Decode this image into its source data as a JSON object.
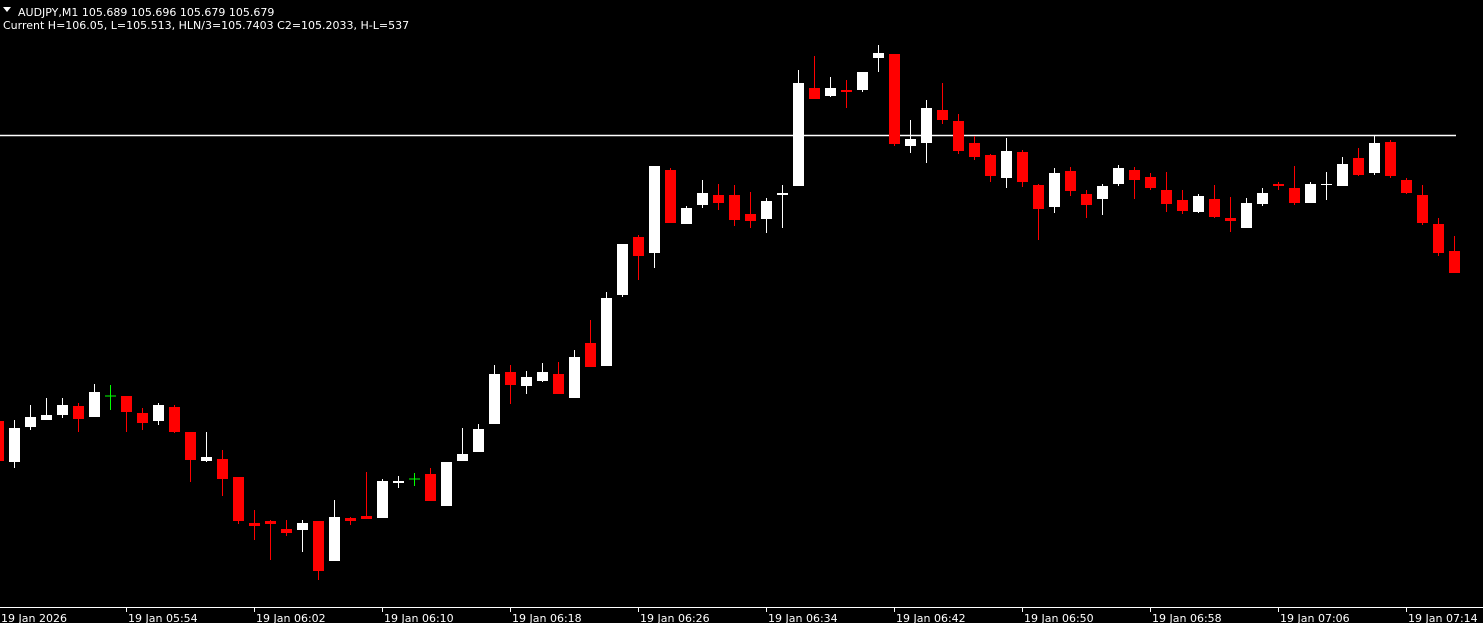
{
  "chart_data": {
    "type": "candlestick",
    "title": "AUDJPY,M1  105.689 105.696 105.679 105.679",
    "subtitle": "Current H=106.05, L=105.513, HLN/3=105.7403 C2=105.2033, H-L=537",
    "categories": [
      "19 Jan 2026",
      null,
      null,
      null,
      null,
      null,
      null,
      null,
      "19 Jan 05:54",
      null,
      null,
      null,
      null,
      null,
      null,
      null,
      "19 Jan 06:02",
      null,
      null,
      null,
      null,
      null,
      null,
      null,
      "19 Jan 06:10",
      null,
      null,
      null,
      null,
      null,
      null,
      null,
      "19 Jan 06:18",
      null,
      null,
      null,
      null,
      null,
      null,
      null,
      "19 Jan 06:26",
      null,
      null,
      null,
      null,
      null,
      null,
      null,
      "19 Jan 06:34",
      null,
      null,
      null,
      null,
      null,
      null,
      null,
      "19 Jan 06:42",
      null,
      null,
      null,
      null,
      null,
      null,
      null,
      "19 Jan 06:50",
      null,
      null,
      null,
      null,
      null,
      null,
      null,
      "19 Jan 06:58",
      null,
      null,
      null,
      null,
      null,
      null,
      null,
      "19 Jan 07:06",
      null,
      null,
      null,
      null,
      null,
      null,
      null,
      "19 Jan 07:14",
      null,
      null,
      null
    ],
    "open": [
      105.674,
      105.633,
      105.668,
      105.675,
      105.68,
      105.689,
      105.678,
      105.699,
      105.699,
      105.682,
      105.674,
      105.688,
      105.663,
      105.634,
      105.636,
      105.618,
      105.572,
      105.574,
      105.566,
      105.565,
      105.574,
      105.534,
      105.577,
      105.579,
      105.577,
      105.612,
      105.616,
      105.621,
      105.589,
      105.634,
      105.643,
      105.671,
      105.723,
      105.709,
      105.714,
      105.721,
      105.697,
      105.752,
      105.729,
      105.8,
      105.858,
      105.842,
      105.925,
      105.871,
      105.89,
      105.9,
      105.9,
      105.881,
      105.876,
      105.9,
      105.909,
      106.007,
      105.999,
      106.005,
      106.005,
      106.037,
      106.041,
      105.949,
      105.952,
      105.985,
      105.974,
      105.952,
      105.94,
      105.917,
      105.943,
      105.91,
      105.888,
      105.924,
      105.901,
      105.896,
      105.911,
      105.925,
      105.918,
      105.905,
      105.895,
      105.883,
      105.896,
      105.877,
      105.867,
      105.891,
      105.911,
      105.907,
      105.892,
      105.91,
      105.909,
      105.937,
      105.922,
      105.953,
      105.915,
      105.9,
      105.871,
      105.844
    ],
    "high": [
      105.674,
      105.675,
      105.69,
      105.697,
      105.697,
      105.692,
      105.711,
      105.71,
      105.699,
      105.687,
      105.692,
      105.69,
      105.663,
      105.663,
      105.645,
      105.618,
      105.585,
      105.575,
      105.575,
      105.575,
      105.574,
      105.595,
      105.578,
      105.623,
      105.616,
      105.619,
      105.622,
      105.627,
      105.633,
      105.667,
      105.671,
      105.73,
      105.73,
      105.724,
      105.732,
      105.733,
      105.745,
      105.775,
      105.803,
      105.851,
      105.86,
      105.929,
      105.927,
      105.889,
      105.915,
      105.911,
      105.91,
      105.903,
      105.897,
      105.91,
      106.025,
      106.039,
      106.018,
      106.015,
      106.023,
      106.05,
      106.041,
      105.975,
      105.995,
      106.012,
      105.981,
      105.959,
      105.941,
      105.957,
      105.945,
      105.911,
      105.927,
      105.928,
      105.905,
      105.911,
      105.93,
      105.928,
      105.922,
      105.923,
      105.905,
      105.901,
      105.91,
      105.898,
      105.897,
      105.907,
      105.913,
      105.929,
      105.913,
      105.923,
      105.938,
      105.947,
      105.959,
      105.955,
      105.917,
      105.91,
      105.877,
      105.859
    ],
    "low": [
      105.634,
      105.627,
      105.665,
      105.675,
      105.677,
      105.663,
      105.678,
      105.685,
      105.663,
      105.665,
      105.67,
      105.662,
      105.613,
      105.633,
      105.599,
      105.571,
      105.555,
      105.535,
      105.559,
      105.543,
      105.515,
      105.534,
      105.57,
      105.576,
      105.577,
      105.607,
      105.609,
      105.594,
      105.589,
      105.634,
      105.643,
      105.671,
      105.691,
      105.701,
      105.713,
      105.701,
      105.697,
      105.728,
      105.729,
      105.798,
      105.815,
      105.827,
      105.872,
      105.871,
      105.887,
      105.885,
      105.869,
      105.867,
      105.862,
      105.867,
      105.909,
      105.996,
      105.998,
      105.987,
      106.003,
      106.023,
      105.949,
      105.942,
      105.932,
      105.971,
      105.941,
      105.935,
      105.913,
      105.907,
      105.908,
      105.855,
      105.882,
      105.899,
      105.877,
      105.88,
      105.909,
      105.896,
      105.905,
      105.883,
      105.881,
      105.882,
      105.877,
      105.863,
      105.867,
      105.889,
      105.905,
      105.89,
      105.892,
      105.895,
      105.909,
      105.919,
      105.92,
      105.917,
      105.901,
      105.87,
      105.839,
      105.822
    ],
    "close": [
      105.634,
      105.667,
      105.678,
      105.68,
      105.69,
      105.676,
      105.703,
      105.699,
      105.683,
      105.672,
      105.69,
      105.663,
      105.635,
      105.638,
      105.616,
      105.574,
      105.569,
      105.571,
      105.562,
      105.572,
      105.524,
      105.578,
      105.574,
      105.576,
      105.614,
      105.614,
      105.616,
      105.594,
      105.633,
      105.641,
      105.666,
      105.721,
      105.71,
      105.718,
      105.723,
      105.701,
      105.738,
      105.728,
      105.797,
      105.851,
      105.839,
      105.929,
      105.872,
      105.887,
      105.902,
      105.892,
      105.875,
      105.874,
      105.894,
      105.902,
      106.012,
      105.996,
      106.007,
      106.003,
      106.023,
      106.042,
      105.951,
      105.956,
      105.987,
      105.975,
      105.944,
      105.938,
      105.919,
      105.944,
      105.913,
      105.886,
      105.922,
      105.904,
      105.89,
      105.909,
      105.927,
      105.915,
      105.907,
      105.891,
      105.884,
      105.899,
      105.878,
      105.874,
      105.892,
      105.902,
      105.909,
      105.892,
      105.911,
      105.911,
      105.931,
      105.92,
      105.952,
      105.919,
      105.902,
      105.872,
      105.842,
      105.822
    ],
    "up_color": "#ffffff",
    "down_color": "#ff0000",
    "doji_color": "#00ff00",
    "ylim": [
      105.488,
      106.095
    ],
    "hline": 105.96,
    "hline_color": "#ffffff"
  }
}
